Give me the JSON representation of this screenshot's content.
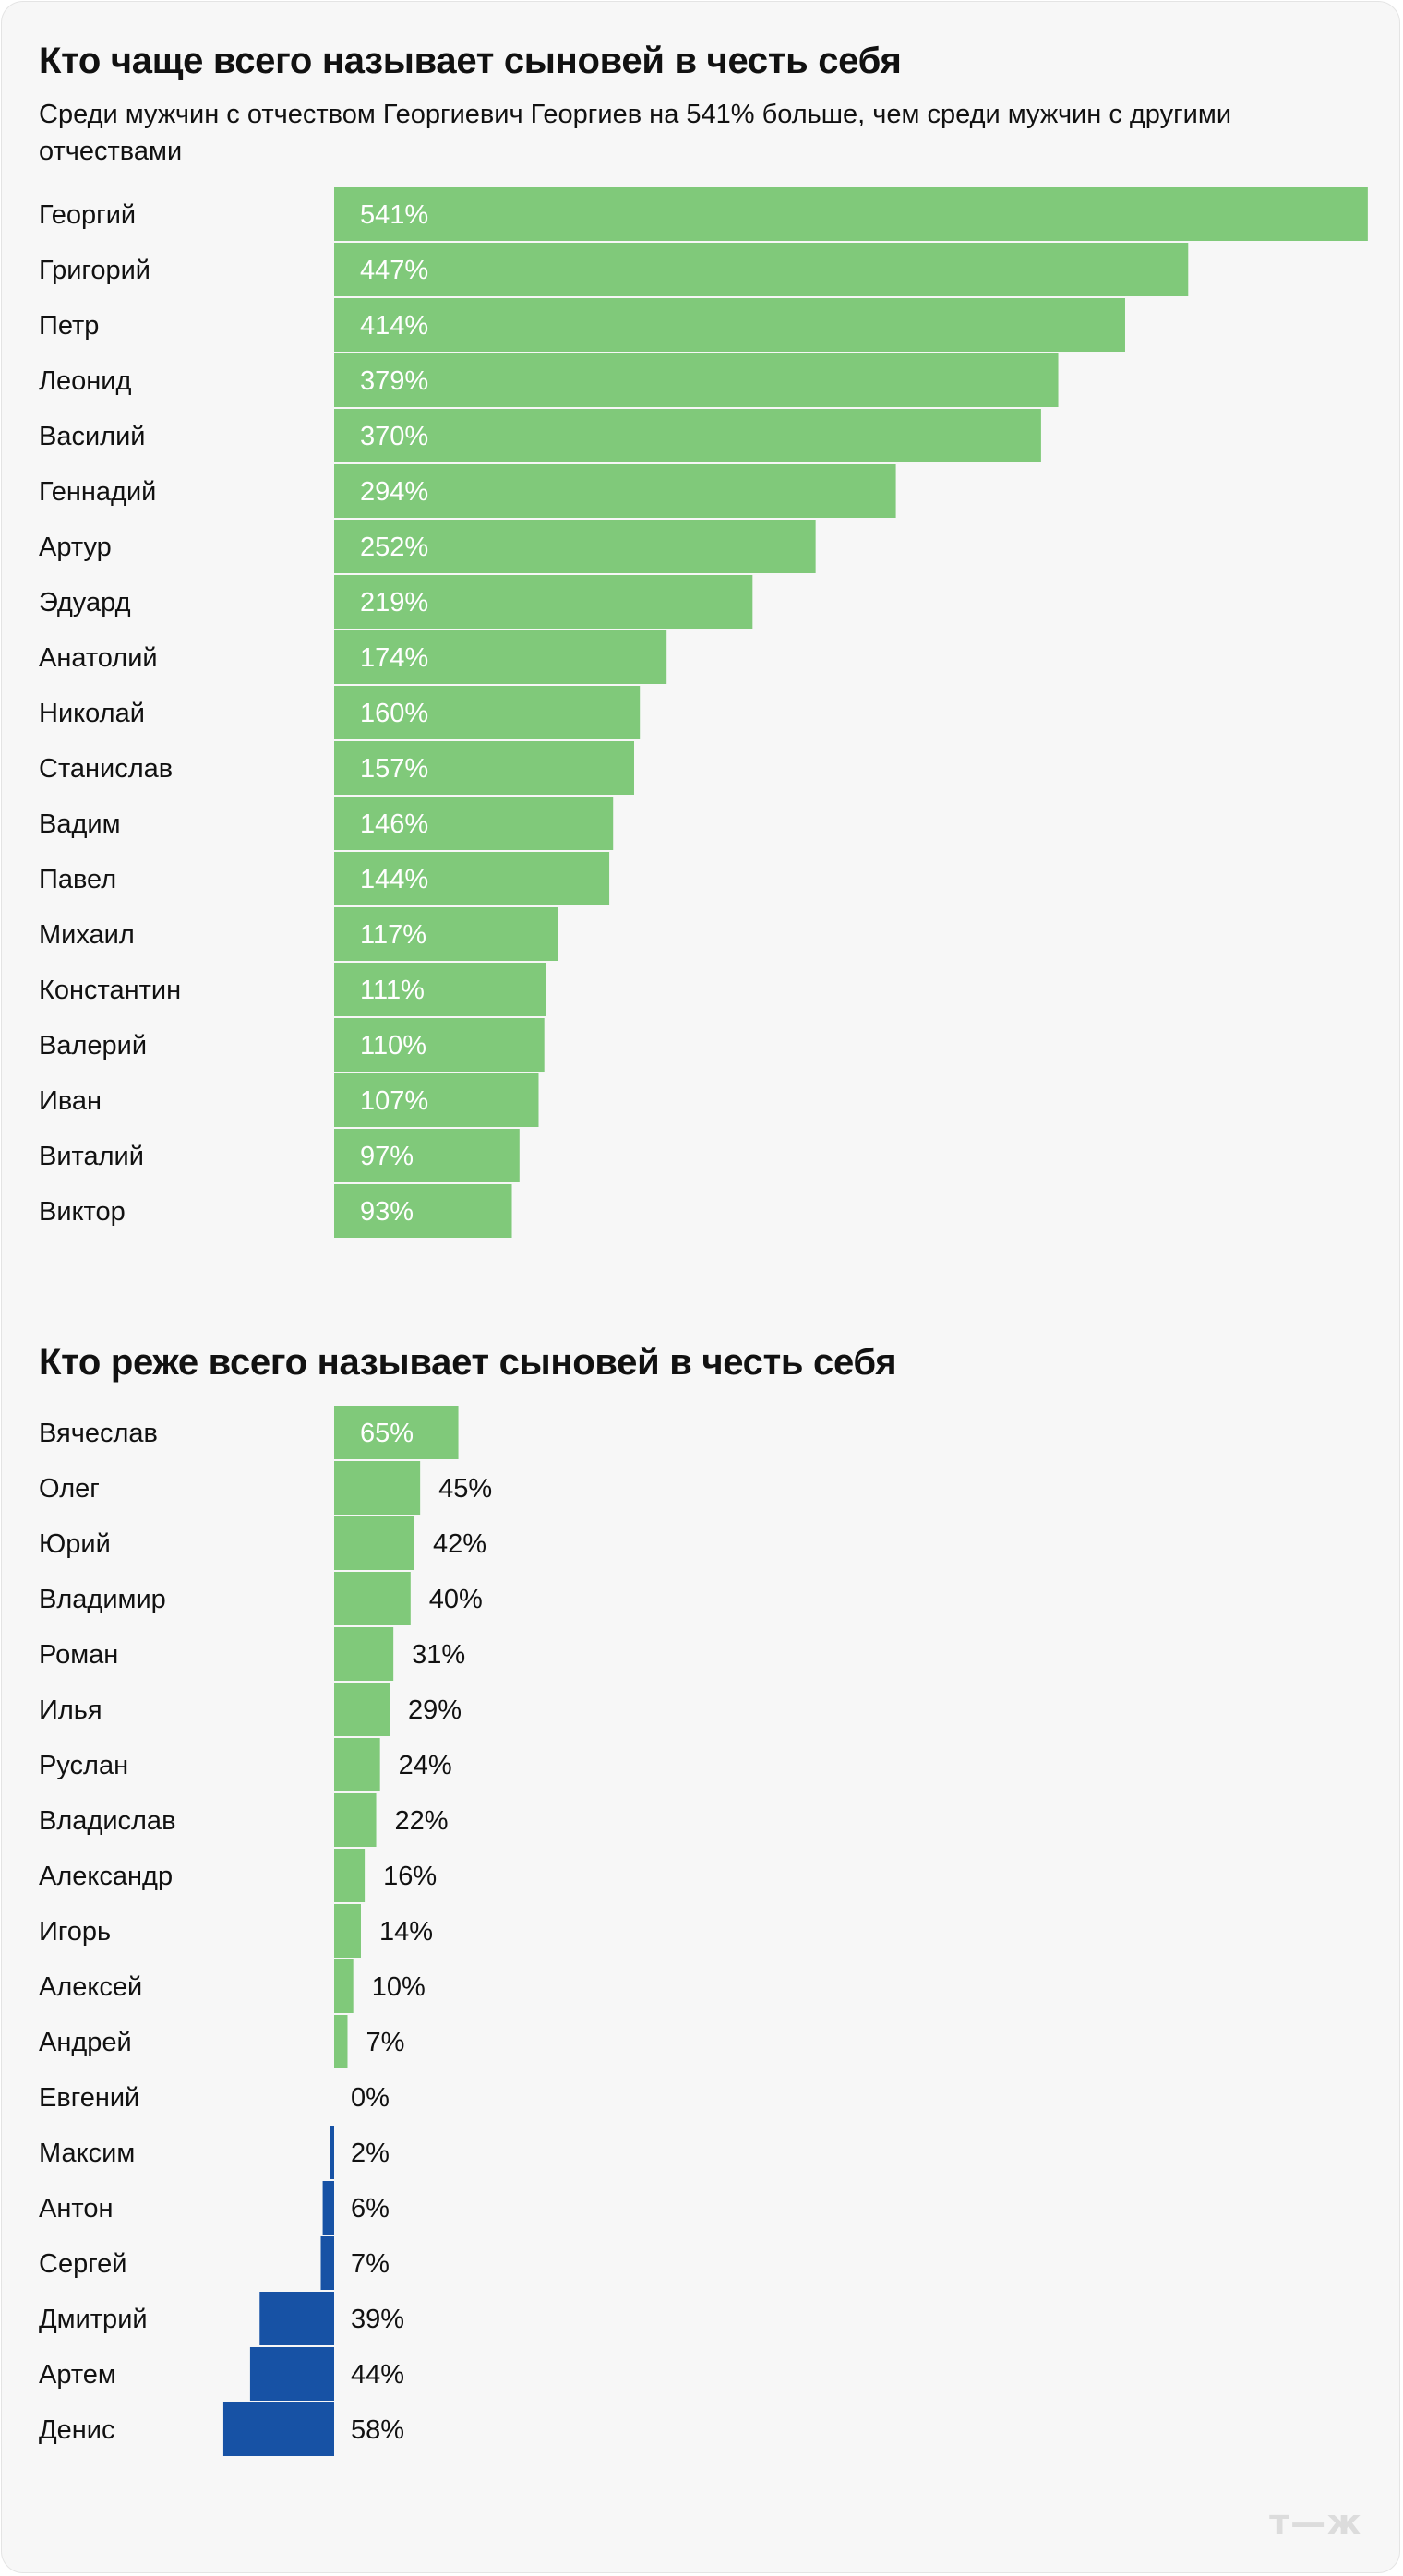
{
  "chart_data": [
    {
      "type": "bar",
      "orientation": "horizontal",
      "title": "Кто чаще всего называет сыновей в честь себя",
      "subtitle": "Среди мужчин с отчеством Георгиевич Георгиев на 541% больше, чем среди мужчин с другими отчествами",
      "categories": [
        "Георгий",
        "Григорий",
        "Петр",
        "Леонид",
        "Василий",
        "Геннадий",
        "Артур",
        "Эдуард",
        "Анатолий",
        "Николай",
        "Станислав",
        "Вадим",
        "Павел",
        "Михаил",
        "Константин",
        "Валерий",
        "Иван",
        "Виталий",
        "Виктор"
      ],
      "values": [
        541,
        447,
        414,
        379,
        370,
        294,
        252,
        219,
        174,
        160,
        157,
        146,
        144,
        117,
        111,
        110,
        107,
        97,
        93
      ],
      "value_labels": [
        "541%",
        "447%",
        "414%",
        "379%",
        "370%",
        "294%",
        "252%",
        "219%",
        "174%",
        "160%",
        "157%",
        "146%",
        "144%",
        "117%",
        "111%",
        "110%",
        "107%",
        "97%",
        "93%"
      ],
      "unit": "%",
      "xlim": [
        0,
        541
      ],
      "colors": {
        "positive": "#80c97a"
      },
      "grid": false,
      "legend": "none"
    },
    {
      "type": "bar",
      "orientation": "horizontal",
      "title": "Кто реже всего называет сыновей в честь себя",
      "categories": [
        "Вячеслав",
        "Олег",
        "Юрий",
        "Владимир",
        "Роман",
        "Илья",
        "Руслан",
        "Владислав",
        "Александр",
        "Игорь",
        "Алексей",
        "Андрей",
        "Евгений",
        "Максим",
        "Антон",
        "Сергей",
        "Дмитрий",
        "Артем",
        "Денис"
      ],
      "values": [
        65,
        45,
        42,
        40,
        31,
        29,
        24,
        22,
        16,
        14,
        10,
        7,
        0,
        -2,
        -6,
        -7,
        -39,
        -44,
        -58
      ],
      "value_labels": [
        "65%",
        "45%",
        "42%",
        "40%",
        "31%",
        "29%",
        "24%",
        "22%",
        "16%",
        "14%",
        "10%",
        "7%",
        "0%",
        "2%",
        "6%",
        "7%",
        "39%",
        "44%",
        "58%"
      ],
      "unit": "%",
      "xlim": [
        -58,
        541
      ],
      "colors": {
        "positive": "#80c97a",
        "negative": "#1752a5"
      },
      "grid": false,
      "legend": "none"
    }
  ],
  "logo": {
    "text": "т—ж"
  }
}
